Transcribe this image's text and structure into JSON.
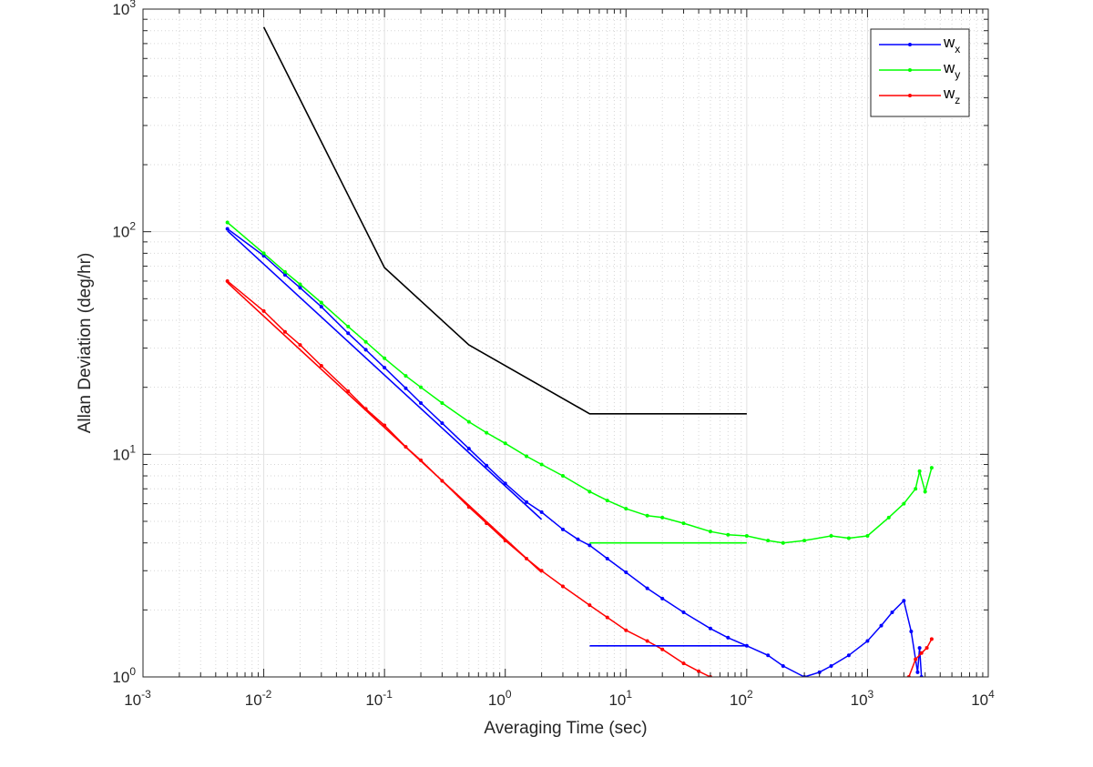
{
  "chart_data": {
    "type": "line",
    "title": "",
    "xlabel": "Averaging Time (sec)",
    "ylabel": "Allan Deviation (deg/hr)",
    "xscale": "log",
    "yscale": "log",
    "xlim": [
      0.001,
      10000
    ],
    "ylim": [
      1,
      1000
    ],
    "x_ticks": [
      {
        "base": "10",
        "exp": "-3",
        "value": 0.001
      },
      {
        "base": "10",
        "exp": "-2",
        "value": 0.01
      },
      {
        "base": "10",
        "exp": "-1",
        "value": 0.1
      },
      {
        "base": "10",
        "exp": "0",
        "value": 1
      },
      {
        "base": "10",
        "exp": "1",
        "value": 10
      },
      {
        "base": "10",
        "exp": "2",
        "value": 100
      },
      {
        "base": "10",
        "exp": "3",
        "value": 1000
      },
      {
        "base": "10",
        "exp": "4",
        "value": 10000
      }
    ],
    "y_ticks": [
      {
        "base": "10",
        "exp": "0",
        "value": 1
      },
      {
        "base": "10",
        "exp": "1",
        "value": 10
      },
      {
        "base": "10",
        "exp": "2",
        "value": 100
      },
      {
        "base": "10",
        "exp": "3",
        "value": 1000
      }
    ],
    "grid": true,
    "minor_grid": true,
    "legend_position": "top-right",
    "legend": [
      {
        "base": "w",
        "sub": "x",
        "color": "#0000ff"
      },
      {
        "base": "w",
        "sub": "y",
        "color": "#00ff00"
      },
      {
        "base": "w",
        "sub": "z",
        "color": "#ff0000"
      }
    ],
    "series": [
      {
        "color": "#0000ff",
        "markers": true,
        "legend_index": 0,
        "points": [
          [
            0.005,
            103
          ],
          [
            0.01,
            78
          ],
          [
            0.015,
            64
          ],
          [
            0.02,
            56
          ],
          [
            0.03,
            46
          ],
          [
            0.05,
            35
          ],
          [
            0.07,
            29.5
          ],
          [
            0.1,
            24.5
          ],
          [
            0.15,
            19.8
          ],
          [
            0.2,
            17
          ],
          [
            0.3,
            13.8
          ],
          [
            0.5,
            10.6
          ],
          [
            0.7,
            8.9
          ],
          [
            1,
            7.4
          ],
          [
            1.5,
            6.1
          ],
          [
            2,
            5.5
          ],
          [
            3,
            4.6
          ],
          [
            4,
            4.15
          ],
          [
            5,
            3.9
          ],
          [
            7,
            3.4
          ],
          [
            10,
            2.95
          ],
          [
            15,
            2.5
          ],
          [
            20,
            2.25
          ],
          [
            30,
            1.95
          ],
          [
            50,
            1.65
          ],
          [
            70,
            1.5
          ],
          [
            100,
            1.38
          ],
          [
            150,
            1.25
          ],
          [
            200,
            1.12
          ],
          [
            300,
            1.0
          ],
          [
            400,
            1.05
          ],
          [
            500,
            1.12
          ],
          [
            700,
            1.25
          ],
          [
            1000,
            1.45
          ],
          [
            1300,
            1.7
          ],
          [
            1600,
            1.95
          ],
          [
            2000,
            2.2
          ],
          [
            2300,
            1.6
          ],
          [
            2600,
            1.05
          ],
          [
            2700,
            1.35
          ],
          [
            2800,
            1.0
          ]
        ]
      },
      {
        "color": "#00ff00",
        "markers": true,
        "legend_index": 1,
        "points": [
          [
            0.005,
            110
          ],
          [
            0.01,
            80
          ],
          [
            0.015,
            66
          ],
          [
            0.02,
            58
          ],
          [
            0.03,
            48
          ],
          [
            0.05,
            37.5
          ],
          [
            0.07,
            32
          ],
          [
            0.1,
            27
          ],
          [
            0.15,
            22.5
          ],
          [
            0.2,
            20
          ],
          [
            0.3,
            17
          ],
          [
            0.5,
            14
          ],
          [
            0.7,
            12.5
          ],
          [
            1,
            11.2
          ],
          [
            1.5,
            9.8
          ],
          [
            2,
            9.0
          ],
          [
            3,
            8.0
          ],
          [
            5,
            6.8
          ],
          [
            7,
            6.2
          ],
          [
            10,
            5.7
          ],
          [
            15,
            5.3
          ],
          [
            20,
            5.2
          ],
          [
            30,
            4.9
          ],
          [
            50,
            4.5
          ],
          [
            70,
            4.35
          ],
          [
            100,
            4.3
          ],
          [
            150,
            4.1
          ],
          [
            200,
            4.0
          ],
          [
            300,
            4.1
          ],
          [
            500,
            4.3
          ],
          [
            700,
            4.2
          ],
          [
            1000,
            4.3
          ],
          [
            1500,
            5.2
          ],
          [
            2000,
            6.0
          ],
          [
            2500,
            7.0
          ],
          [
            2700,
            8.4
          ],
          [
            3000,
            6.8
          ],
          [
            3400,
            8.7
          ]
        ]
      },
      {
        "color": "#ff0000",
        "markers": true,
        "legend_index": 2,
        "points": [
          [
            0.005,
            60
          ],
          [
            0.01,
            44
          ],
          [
            0.015,
            35.5
          ],
          [
            0.02,
            31
          ],
          [
            0.03,
            25
          ],
          [
            0.05,
            19.2
          ],
          [
            0.07,
            16
          ],
          [
            0.1,
            13.5
          ],
          [
            0.15,
            10.8
          ],
          [
            0.2,
            9.4
          ],
          [
            0.3,
            7.6
          ],
          [
            0.5,
            5.8
          ],
          [
            0.7,
            4.9
          ],
          [
            1,
            4.1
          ],
          [
            1.5,
            3.4
          ],
          [
            2,
            3.0
          ],
          [
            3,
            2.55
          ],
          [
            5,
            2.1
          ],
          [
            7,
            1.85
          ],
          [
            10,
            1.62
          ],
          [
            15,
            1.45
          ],
          [
            20,
            1.33
          ],
          [
            30,
            1.15
          ],
          [
            40,
            1.06
          ],
          [
            50,
            1.0
          ]
        ]
      },
      {
        "color": "#ff0000",
        "markers": true,
        "legend_index": null,
        "points": [
          [
            2200,
            1.0
          ],
          [
            2500,
            1.2
          ],
          [
            2800,
            1.28
          ],
          [
            3100,
            1.35
          ],
          [
            3400,
            1.48
          ]
        ]
      },
      {
        "color": "#000000",
        "markers": false,
        "legend_index": null,
        "points": [
          [
            0.01,
            830
          ],
          [
            0.1,
            69
          ],
          [
            0.5,
            31
          ],
          [
            5,
            15.2
          ],
          [
            100,
            15.2
          ]
        ]
      },
      {
        "color": "#0000ff",
        "markers": false,
        "legend_index": null,
        "points": [
          [
            0.005,
            101
          ],
          [
            2,
            5.1
          ]
        ]
      },
      {
        "color": "#ff0000",
        "markers": false,
        "legend_index": null,
        "points": [
          [
            0.005,
            59
          ],
          [
            2,
            2.95
          ]
        ]
      },
      {
        "color": "#0000ff",
        "markers": false,
        "legend_index": null,
        "points": [
          [
            5,
            1.38
          ],
          [
            100,
            1.38
          ]
        ]
      },
      {
        "color": "#00ff00",
        "markers": false,
        "legend_index": null,
        "points": [
          [
            5,
            4.0
          ],
          [
            100,
            4.0
          ]
        ]
      }
    ]
  }
}
